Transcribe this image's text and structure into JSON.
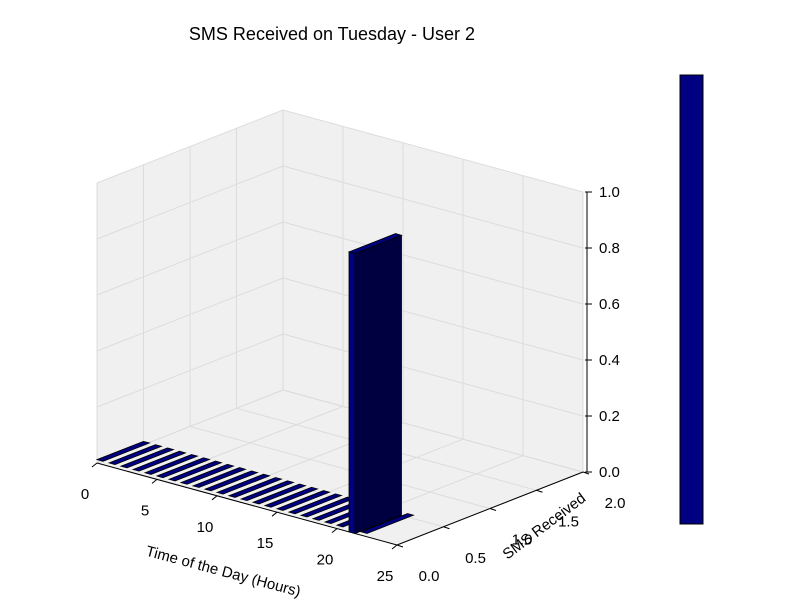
{
  "chart_data": {
    "type": "bar3d",
    "title": "SMS Received on Tuesday - User 2",
    "xlabel": "Time of the Day (Hours)",
    "ylabel": "SMS Received",
    "zlabel": "",
    "x_ticks": [
      "0",
      "5",
      "10",
      "15",
      "20",
      "25"
    ],
    "y_ticks": [
      "0.0",
      "0.5",
      "1.0",
      "1.5",
      "2.0"
    ],
    "z_ticks": [
      "0.0",
      "0.2",
      "0.4",
      "0.6",
      "0.8",
      "1.0"
    ],
    "xlim": [
      0,
      25
    ],
    "ylim": [
      0,
      2
    ],
    "zlim": [
      0,
      1
    ],
    "bar_color": "#000080",
    "pane_color": "#f0f0f0",
    "colorbar": true,
    "bars": [
      {
        "x": 0,
        "y": 0,
        "z": 0
      },
      {
        "x": 1,
        "y": 0,
        "z": 0
      },
      {
        "x": 2,
        "y": 0,
        "z": 0
      },
      {
        "x": 3,
        "y": 0,
        "z": 0
      },
      {
        "x": 4,
        "y": 0,
        "z": 0
      },
      {
        "x": 5,
        "y": 0,
        "z": 0
      },
      {
        "x": 6,
        "y": 0,
        "z": 0
      },
      {
        "x": 7,
        "y": 0,
        "z": 0
      },
      {
        "x": 8,
        "y": 0,
        "z": 0
      },
      {
        "x": 9,
        "y": 0,
        "z": 0
      },
      {
        "x": 10,
        "y": 0,
        "z": 0
      },
      {
        "x": 11,
        "y": 0,
        "z": 0
      },
      {
        "x": 12,
        "y": 0,
        "z": 0
      },
      {
        "x": 13,
        "y": 0,
        "z": 0
      },
      {
        "x": 14,
        "y": 0,
        "z": 0
      },
      {
        "x": 15,
        "y": 0,
        "z": 0
      },
      {
        "x": 16,
        "y": 0,
        "z": 0
      },
      {
        "x": 17,
        "y": 0,
        "z": 0
      },
      {
        "x": 18,
        "y": 0,
        "z": 0
      },
      {
        "x": 19,
        "y": 0,
        "z": 0
      },
      {
        "x": 20,
        "y": 0,
        "z": 0
      },
      {
        "x": 21,
        "y": 0,
        "z": 1
      },
      {
        "x": 22,
        "y": 0,
        "z": 0
      }
    ]
  }
}
